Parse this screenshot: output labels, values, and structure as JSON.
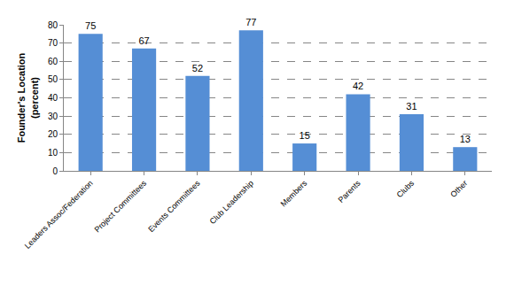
{
  "chart_data": {
    "type": "bar",
    "y_label": "Founder's Location (percent)",
    "categories": [
      "Leaders Assoc/Federation",
      "Project Committees",
      "Events Committees",
      "Club Leadership",
      "Members",
      "Parents",
      "Clubs",
      "Other"
    ],
    "values": [
      75,
      67,
      52,
      77,
      15,
      42,
      31,
      13
    ],
    "color": "#558ed5",
    "ylim": [
      0,
      80
    ],
    "yticks": [
      0,
      10,
      20,
      30,
      40,
      50,
      60,
      70,
      80
    ],
    "grid": true,
    "data_labels": true
  }
}
